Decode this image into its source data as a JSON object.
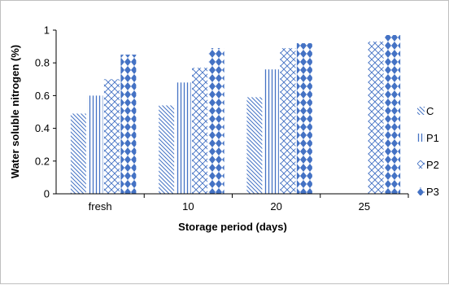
{
  "chart_data": {
    "type": "bar",
    "categories": [
      "fresh",
      "10",
      "20",
      "25"
    ],
    "series": [
      {
        "name": "C",
        "values": [
          0.49,
          0.54,
          0.59,
          null
        ],
        "pattern": "diag-down"
      },
      {
        "name": "P1",
        "values": [
          0.6,
          0.68,
          0.76,
          null
        ],
        "pattern": "vertical"
      },
      {
        "name": "P2",
        "values": [
          0.7,
          0.77,
          0.89,
          0.93
        ],
        "pattern": "wave"
      },
      {
        "name": "P3",
        "values": [
          0.85,
          0.89,
          0.92,
          0.97
        ],
        "pattern": "diamond"
      }
    ],
    "xlabel": "Storage period (days)",
    "ylabel": "Water soluble nitrogen (%)",
    "ylim": [
      0,
      1
    ],
    "yticks": [
      "0",
      "0.2",
      "0.4",
      "0.6",
      "0.8",
      "1"
    ],
    "grid": false,
    "legend_position": "right",
    "colors": {
      "pattern_stroke": "#4472c4",
      "axis": "#000000",
      "frame": "#bfbfbf"
    }
  }
}
